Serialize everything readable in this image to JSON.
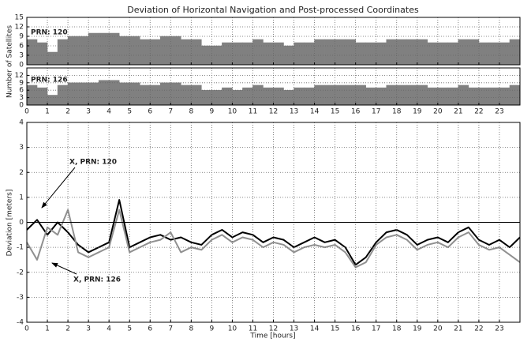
{
  "chart_data": [
    {
      "type": "step",
      "title": "Deviation of Horizontal Navigation and Post-processed Coordinates",
      "ylabel": "Number of Satellites",
      "label": "PRN: 120",
      "color": "#808080",
      "x": [
        0,
        0.5,
        1,
        1.5,
        2,
        2.5,
        3,
        3.5,
        4,
        4.5,
        5,
        5.5,
        6,
        6.5,
        7,
        7.5,
        8,
        8.5,
        9,
        9.5,
        10,
        10.5,
        11,
        11.5,
        12,
        12.5,
        13,
        13.5,
        14,
        14.5,
        15,
        15.5,
        16,
        16.5,
        17,
        17.5,
        18,
        18.5,
        19,
        19.5,
        20,
        20.5,
        21,
        21.5,
        22,
        22.5,
        23,
        23.5
      ],
      "values": [
        8,
        7,
        4,
        8,
        9,
        9,
        10,
        10,
        10,
        9,
        9,
        8,
        8,
        9,
        9,
        8,
        8,
        6,
        6,
        7,
        7,
        7,
        8,
        7,
        7,
        6,
        7,
        7,
        8,
        8,
        8,
        8,
        7,
        7,
        7,
        8,
        8,
        8,
        8,
        7,
        7,
        7,
        8,
        8,
        7,
        7,
        7,
        8
      ],
      "xlim": [
        0,
        24
      ],
      "ylim": [
        0,
        15
      ],
      "yticks": [
        0,
        3,
        6,
        9,
        12,
        15
      ],
      "xticks": [
        0,
        1,
        2,
        3,
        4,
        5,
        6,
        7,
        8,
        9,
        10,
        11,
        12,
        13,
        14,
        15,
        16,
        17,
        18,
        19,
        20,
        21,
        22,
        23
      ],
      "xtick_labels": false,
      "grid": true
    },
    {
      "type": "step",
      "label": "PRN: 126",
      "color": "#808080",
      "x": [
        0,
        0.5,
        1,
        1.5,
        2,
        2.5,
        3,
        3.5,
        4,
        4.5,
        5,
        5.5,
        6,
        6.5,
        7,
        7.5,
        8,
        8.5,
        9,
        9.5,
        10,
        10.5,
        11,
        11.5,
        12,
        12.5,
        13,
        13.5,
        14,
        14.5,
        15,
        15.5,
        16,
        16.5,
        17,
        17.5,
        18,
        18.5,
        19,
        19.5,
        20,
        20.5,
        21,
        21.5,
        22,
        22.5,
        23,
        23.5
      ],
      "values": [
        8,
        7,
        4,
        8,
        9,
        9,
        9,
        10,
        10,
        9,
        9,
        8,
        8,
        9,
        9,
        8,
        8,
        6,
        6,
        7,
        6,
        7,
        8,
        7,
        7,
        6,
        7,
        7,
        8,
        8,
        8,
        8,
        8,
        7,
        7,
        8,
        8,
        8,
        8,
        7,
        7,
        7,
        8,
        7,
        7,
        7,
        7,
        8
      ],
      "xlim": [
        0,
        24
      ],
      "ylim": [
        0,
        15
      ],
      "yticks": [
        0,
        3,
        6,
        9,
        12
      ],
      "xticks": [
        0,
        1,
        2,
        3,
        4,
        5,
        6,
        7,
        8,
        9,
        10,
        11,
        12,
        13,
        14,
        15,
        16,
        17,
        18,
        19,
        20,
        21,
        22,
        23
      ],
      "xtick_labels": true,
      "grid": true
    },
    {
      "type": "line",
      "xlabel": "Time [hours]",
      "ylabel": "Deviation [meters]",
      "annotations": [
        "X, PRN: 120",
        "X, PRN: 126"
      ],
      "x": [
        0,
        0.5,
        1,
        1.5,
        2,
        2.5,
        3,
        3.5,
        4,
        4.5,
        5,
        5.5,
        6,
        6.5,
        7,
        7.5,
        8,
        8.5,
        9,
        9.5,
        10,
        10.5,
        11,
        11.5,
        12,
        12.5,
        13,
        13.5,
        14,
        14.5,
        15,
        15.5,
        16,
        16.5,
        17,
        17.5,
        18,
        18.5,
        19,
        19.5,
        20,
        20.5,
        21,
        21.5,
        22,
        22.5,
        23,
        23.5,
        24
      ],
      "series": [
        {
          "name": "X, PRN: 120",
          "color": "#000000",
          "values": [
            -0.3,
            0.1,
            -0.5,
            0.0,
            -0.4,
            -0.9,
            -1.2,
            -1.0,
            -0.8,
            0.9,
            -1.0,
            -0.8,
            -0.6,
            -0.5,
            -0.7,
            -0.6,
            -0.8,
            -0.9,
            -0.5,
            -0.3,
            -0.6,
            -0.4,
            -0.5,
            -0.8,
            -0.6,
            -0.7,
            -1.0,
            -0.8,
            -0.6,
            -0.8,
            -0.7,
            -1.0,
            -1.7,
            -1.4,
            -0.8,
            -0.4,
            -0.3,
            -0.5,
            -0.9,
            -0.7,
            -0.6,
            -0.8,
            -0.4,
            -0.2,
            -0.7,
            -0.9,
            -0.7,
            -1.0,
            -0.6
          ]
        },
        {
          "name": "X, PRN: 126",
          "color": "#909090",
          "values": [
            -0.8,
            -1.5,
            -0.2,
            -0.5,
            0.5,
            -1.2,
            -1.4,
            -1.2,
            -1.0,
            0.5,
            -1.2,
            -1.0,
            -0.8,
            -0.7,
            -0.4,
            -1.2,
            -1.0,
            -1.1,
            -0.7,
            -0.5,
            -0.8,
            -0.6,
            -0.7,
            -1.0,
            -0.8,
            -0.9,
            -1.2,
            -1.0,
            -0.9,
            -1.0,
            -0.9,
            -1.2,
            -1.8,
            -1.6,
            -0.9,
            -0.6,
            -0.5,
            -0.7,
            -1.1,
            -0.9,
            -0.8,
            -1.0,
            -0.6,
            -0.4,
            -0.9,
            -1.1,
            -1.0,
            -1.3,
            -1.6
          ]
        }
      ],
      "xlim": [
        0,
        24
      ],
      "ylim": [
        -4,
        4
      ],
      "yticks": [
        -4,
        -3,
        -2,
        -1,
        0,
        1,
        2,
        3,
        4
      ],
      "xticks": [
        0,
        1,
        2,
        3,
        4,
        5,
        6,
        7,
        8,
        9,
        10,
        11,
        12,
        13,
        14,
        15,
        16,
        17,
        18,
        19,
        20,
        21,
        22,
        23
      ],
      "xtick_labels": true,
      "grid": true,
      "zero_line": true
    }
  ]
}
